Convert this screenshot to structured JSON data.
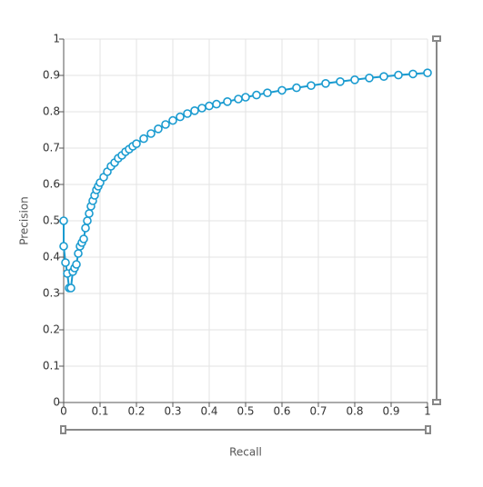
{
  "chart_data": {
    "type": "line",
    "x_label": "Recall",
    "y_label": "Precision",
    "x": [
      0,
      0,
      0.005,
      0.01,
      0.015,
      0.02,
      0.025,
      0.03,
      0.035,
      0.04,
      0.045,
      0.05,
      0.055,
      0.06,
      0.065,
      0.07,
      0.075,
      0.08,
      0.085,
      0.09,
      0.095,
      0.1,
      0.11,
      0.12,
      0.13,
      0.14,
      0.15,
      0.16,
      0.17,
      0.18,
      0.19,
      0.2,
      0.22,
      0.24,
      0.26,
      0.28,
      0.3,
      0.32,
      0.34,
      0.36,
      0.38,
      0.4,
      0.42,
      0.45,
      0.48,
      0.5,
      0.53,
      0.56,
      0.6,
      0.64,
      0.68,
      0.72,
      0.76,
      0.8,
      0.84,
      0.88,
      0.92,
      0.96,
      1
    ],
    "values": [
      0.5,
      0.43,
      0.385,
      0.355,
      0.315,
      0.315,
      0.36,
      0.37,
      0.38,
      0.41,
      0.43,
      0.44,
      0.45,
      0.48,
      0.5,
      0.52,
      0.54,
      0.555,
      0.57,
      0.585,
      0.595,
      0.605,
      0.62,
      0.635,
      0.65,
      0.66,
      0.672,
      0.68,
      0.69,
      0.697,
      0.705,
      0.712,
      0.726,
      0.74,
      0.753,
      0.765,
      0.776,
      0.786,
      0.795,
      0.803,
      0.81,
      0.816,
      0.821,
      0.828,
      0.835,
      0.84,
      0.846,
      0.852,
      0.859,
      0.866,
      0.872,
      0.878,
      0.883,
      0.888,
      0.893,
      0.897,
      0.901,
      0.904,
      0.907
    ],
    "color": "#1a9bd0",
    "xlim": [
      0,
      1
    ],
    "ylim": [
      0,
      1
    ],
    "xticks": [
      0,
      0.1,
      0.2,
      0.3,
      0.4,
      0.5,
      0.6,
      0.7,
      0.8,
      0.9,
      1
    ],
    "yticks": [
      0,
      0.1,
      0.2,
      0.3,
      0.4,
      0.5,
      0.6,
      0.7,
      0.8,
      0.9,
      1
    ],
    "grid": true
  }
}
